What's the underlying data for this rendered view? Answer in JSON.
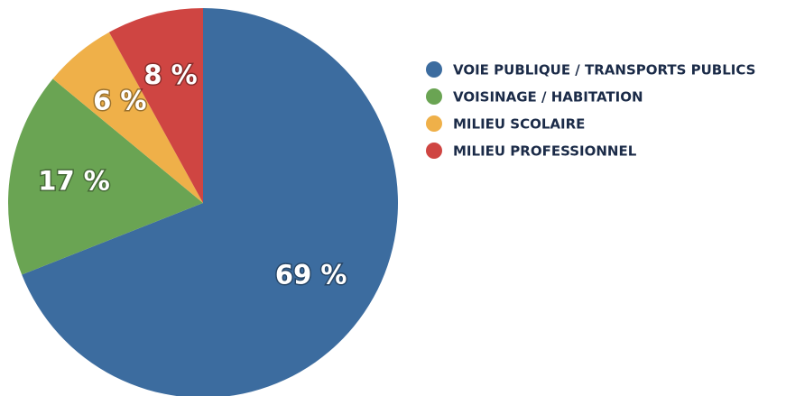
{
  "chart_data": {
    "type": "pie",
    "categories": [
      "VOIE PUBLIQUE / TRANSPORTS PUBLICS",
      "VOISINAGE / HABITATION",
      "MILIEU SCOLAIRE",
      "MILIEU PROFESSIONNEL"
    ],
    "values": [
      69,
      17,
      6,
      8
    ],
    "value_labels": [
      "69 %",
      "17 %",
      "6 %",
      "8 %"
    ],
    "colors": [
      "#3c6c9f",
      "#6aa453",
      "#efb049",
      "#cf4542"
    ],
    "legend": "right"
  }
}
